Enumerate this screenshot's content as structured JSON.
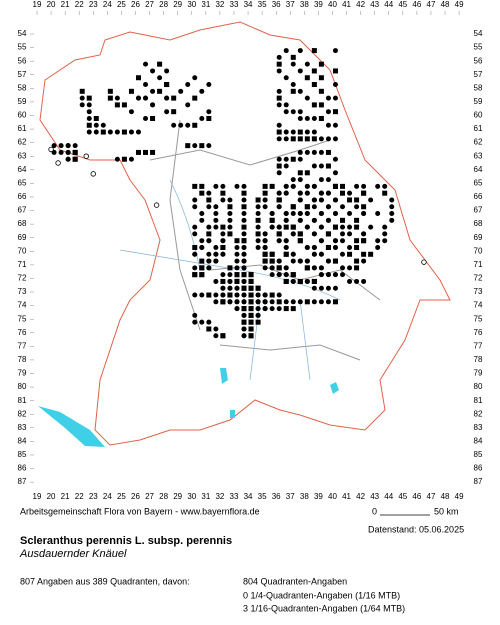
{
  "map": {
    "columns": [
      19,
      20,
      21,
      22,
      23,
      24,
      25,
      26,
      27,
      28,
      29,
      30,
      31,
      32,
      33,
      34,
      35,
      36,
      37,
      38,
      39,
      40,
      41,
      42,
      43,
      44,
      45,
      46,
      47,
      48,
      49
    ],
    "rows": [
      54,
      55,
      56,
      57,
      58,
      59,
      60,
      61,
      62,
      63,
      64,
      65,
      66,
      67,
      68,
      69,
      70,
      71,
      72,
      73,
      74,
      75,
      76,
      77,
      78,
      79,
      80,
      81,
      82,
      83,
      84,
      85,
      86,
      87
    ]
  },
  "footer": {
    "credit": "Arbeitsgemeinschaft Flora von Bayern - www.bayernflora.de",
    "scale_start": "0",
    "scale_end": "50 km",
    "date": "Datenstand: 05.06.2025",
    "title": "Scleranthus perennis L. subsp. perennis",
    "subtitle": "Ausdauernder Knäuel",
    "summary": "807 Angaben aus 389 Quadranten, davon:",
    "legend": [
      "804 Quadranten-Angaben",
      "0 1/4-Quadranten-Angaben (1/16 MTB)",
      "3 1/16-Quadranten-Angaben (1/64 MTB)"
    ]
  }
}
